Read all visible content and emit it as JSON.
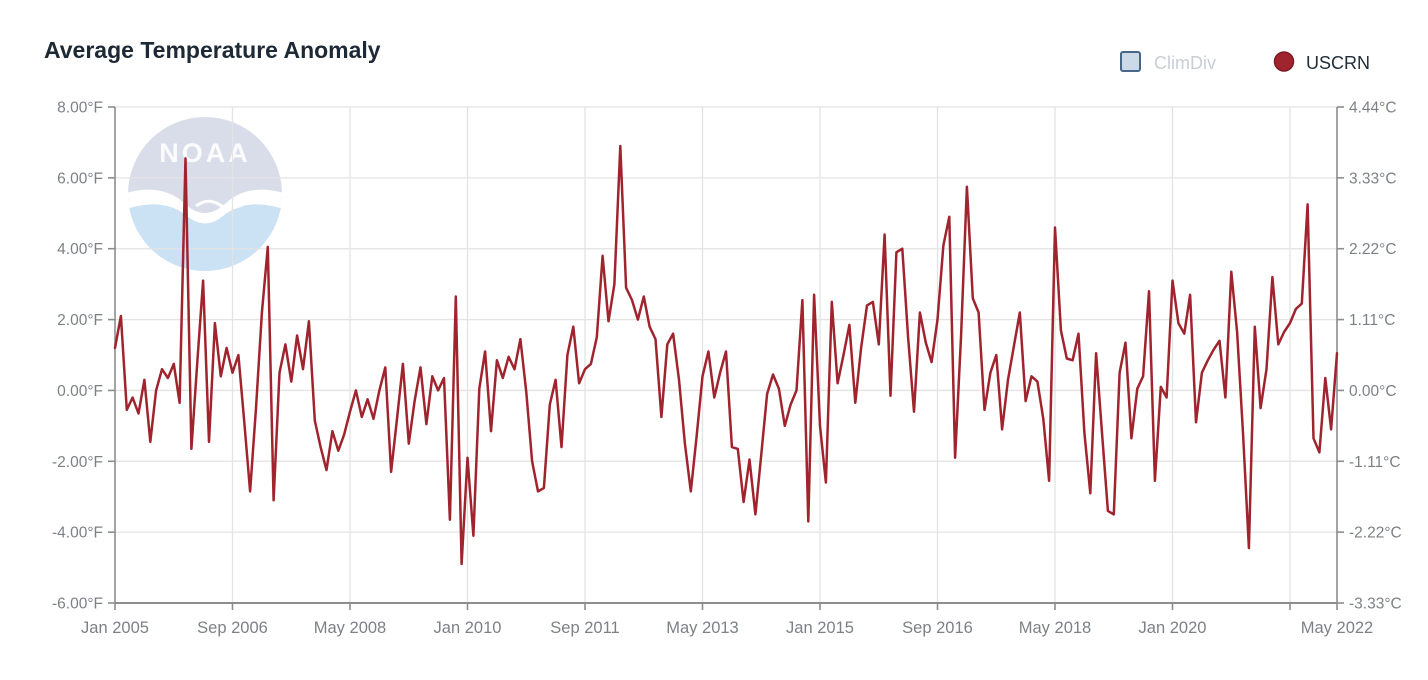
{
  "title": "Average Temperature Anomaly",
  "watermark": {
    "text": "NOAA"
  },
  "legend": {
    "items": [
      {
        "label": "ClimDiv",
        "marker": "square",
        "active": false,
        "marker_fill": "#ccd9e7",
        "marker_stroke": "#46668a"
      },
      {
        "label": "USCRN",
        "marker": "circle",
        "active": true,
        "marker_fill": "#a0242e",
        "marker_stroke": "#7c1b24"
      }
    ]
  },
  "chart_data": {
    "type": "line",
    "title": "Average Temperature Anomaly",
    "grid": true,
    "legend_position": "top-right",
    "ylim": [
      -6,
      8
    ],
    "x_range_months": 208,
    "y_ticks": [
      {
        "f": "8.00°F",
        "c": "4.44°C",
        "value": 8
      },
      {
        "f": "6.00°F",
        "c": "3.33°C",
        "value": 6
      },
      {
        "f": "4.00°F",
        "c": "2.22°C",
        "value": 4
      },
      {
        "f": "2.00°F",
        "c": "1.11°C",
        "value": 2
      },
      {
        "f": "0.00°F",
        "c": "0.00°C",
        "value": 0
      },
      {
        "f": "-2.00°F",
        "c": "-1.11°C",
        "value": -2
      },
      {
        "f": "-4.00°F",
        "c": "-2.22°C",
        "value": -4
      },
      {
        "f": "-6.00°F",
        "c": "-3.33°C",
        "value": -6
      }
    ],
    "x_ticks": [
      {
        "label": "Jan 2005",
        "month": 0
      },
      {
        "label": "Sep 2006",
        "month": 20
      },
      {
        "label": "May 2008",
        "month": 40
      },
      {
        "label": "Jan 2010",
        "month": 60
      },
      {
        "label": "Sep 2011",
        "month": 80
      },
      {
        "label": "May 2013",
        "month": 100
      },
      {
        "label": "Jan 2015",
        "month": 120
      },
      {
        "label": "Sep 2016",
        "month": 140
      },
      {
        "label": "May 2018",
        "month": 160
      },
      {
        "label": "Jan 2020",
        "month": 180
      },
      {
        "label": "",
        "month": 200
      },
      {
        "label": "May 2022",
        "month": 208
      }
    ],
    "colors": {
      "series": "#a0242e",
      "grid": "#e3e3e3",
      "axis": "#8d8d8d",
      "tick_label": "#7d8186",
      "title": "#1d2935"
    },
    "series": [
      {
        "name": "USCRN",
        "unit": "°F",
        "cadence": "monthly",
        "x_start": "Jan 2005",
        "x_end": "May 2022",
        "color": "#a0242e",
        "values": [
          1.2,
          2.1,
          -0.55,
          -0.2,
          -0.65,
          0.3,
          -1.45,
          0.0,
          0.6,
          0.35,
          0.75,
          -0.35,
          6.55,
          -1.65,
          0.8,
          3.1,
          -1.45,
          1.9,
          0.4,
          1.2,
          0.5,
          1.0,
          -0.9,
          -2.85,
          -0.5,
          2.2,
          4.05,
          -3.1,
          0.5,
          1.3,
          0.25,
          1.55,
          0.6,
          1.95,
          -0.85,
          -1.6,
          -2.25,
          -1.15,
          -1.7,
          -1.25,
          -0.6,
          0.0,
          -0.75,
          -0.25,
          -0.8,
          0.0,
          0.65,
          -2.3,
          -0.8,
          0.75,
          -1.5,
          -0.3,
          0.65,
          -0.95,
          0.4,
          0.0,
          0.35,
          -3.65,
          2.65,
          -4.9,
          -1.9,
          -4.1,
          0.05,
          1.1,
          -1.15,
          0.85,
          0.35,
          0.95,
          0.6,
          1.45,
          -0.05,
          -2.0,
          -2.85,
          -2.75,
          -0.4,
          0.3,
          -1.6,
          1.0,
          1.8,
          0.2,
          0.6,
          0.75,
          1.5,
          3.8,
          1.95,
          3.0,
          6.9,
          2.9,
          2.55,
          2.0,
          2.65,
          1.8,
          1.45,
          -0.75,
          1.3,
          1.6,
          0.3,
          -1.5,
          -2.85,
          -1.3,
          0.4,
          1.1,
          -0.2,
          0.5,
          1.1,
          -1.6,
          -1.65,
          -3.15,
          -1.95,
          -3.5,
          -1.8,
          -0.1,
          0.45,
          0.05,
          -1.0,
          -0.4,
          0.0,
          2.55,
          -3.7,
          2.7,
          -1.0,
          -2.6,
          2.5,
          0.2,
          1.0,
          1.85,
          -0.35,
          1.2,
          2.4,
          2.5,
          1.3,
          4.4,
          -0.15,
          3.9,
          4.0,
          1.5,
          -0.6,
          2.2,
          1.35,
          0.8,
          2.0,
          4.1,
          4.9,
          -1.9,
          1.5,
          5.75,
          2.6,
          2.2,
          -0.55,
          0.5,
          1.0,
          -1.1,
          0.3,
          1.25,
          2.2,
          -0.3,
          0.4,
          0.25,
          -0.8,
          -2.55,
          4.6,
          1.7,
          0.9,
          0.85,
          1.6,
          -1.2,
          -2.9,
          1.05,
          -1.2,
          -3.4,
          -3.5,
          0.5,
          1.35,
          -1.35,
          0.05,
          0.4,
          2.8,
          -2.55,
          0.1,
          -0.2,
          3.1,
          1.9,
          1.6,
          2.7,
          -0.9,
          0.5,
          0.85,
          1.15,
          1.4,
          -0.2,
          3.35,
          1.65,
          -1.2,
          -4.45,
          1.8,
          -0.5,
          0.6,
          3.2,
          1.3,
          1.65,
          1.9,
          2.3,
          2.45,
          5.25,
          -1.35,
          -1.75,
          0.35,
          -1.1,
          1.05
        ]
      }
    ]
  }
}
